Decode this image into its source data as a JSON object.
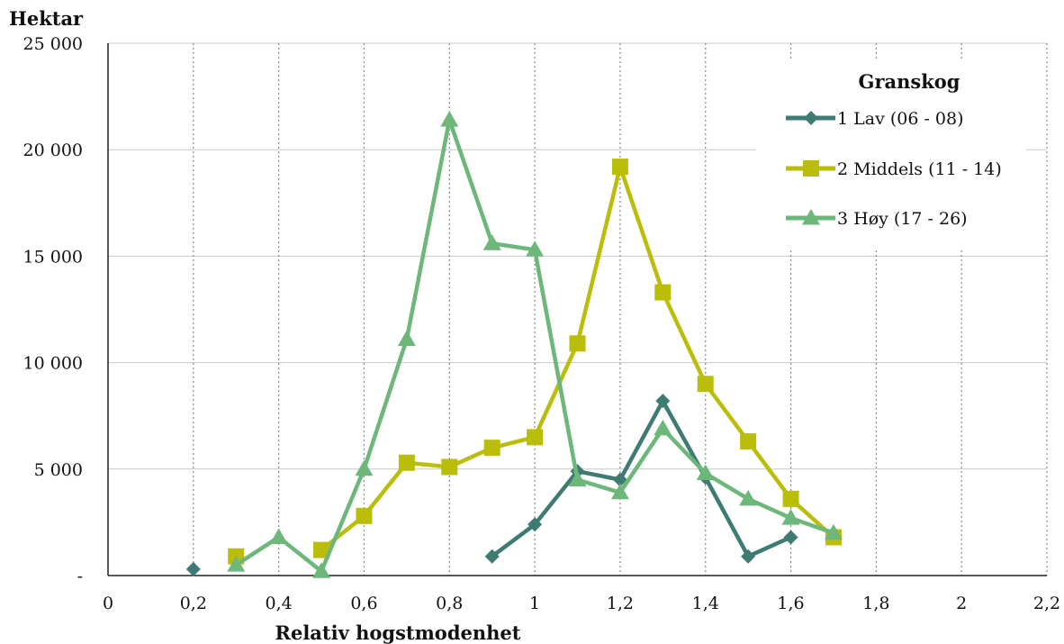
{
  "chart_data": {
    "type": "line",
    "ylabel": "Hektar",
    "xlabel": "Relativ hogstmodenhet",
    "xlim": [
      0,
      2.2
    ],
    "ylim": [
      0,
      25000
    ],
    "x_ticks": [
      0,
      0.2,
      0.4,
      0.6,
      0.8,
      1,
      1.2,
      1.4,
      1.6,
      1.8,
      2,
      2.2
    ],
    "x_tick_labels": [
      "0",
      "0,2",
      "0,4",
      "0,6",
      "0,8",
      "1",
      "1,2",
      "1,4",
      "1,6",
      "1,8",
      "2",
      "2,2"
    ],
    "y_ticks": [
      0,
      5000,
      10000,
      15000,
      20000,
      25000
    ],
    "y_tick_labels": [
      "-",
      "5 000",
      "10 000",
      "15 000",
      "20 000",
      "25 000"
    ],
    "grid": {
      "x": "dotted",
      "y": "solid"
    },
    "legend": {
      "title": "Granskog",
      "position": "top-right"
    },
    "series": [
      {
        "name": "1 Lav (06 - 08)",
        "color": "#3E7B73",
        "marker": "diamond",
        "points": [
          [
            0.2,
            300
          ],
          [
            0.9,
            900
          ],
          [
            1.0,
            2400
          ],
          [
            1.1,
            4900
          ],
          [
            1.2,
            4500
          ],
          [
            1.3,
            8200
          ],
          [
            1.4,
            4600
          ],
          [
            1.5,
            900
          ],
          [
            1.6,
            1800
          ]
        ],
        "breaks_after_index": [
          0
        ]
      },
      {
        "name": "2 Middels (11 - 14)",
        "color": "#BABE0A",
        "marker": "square",
        "points": [
          [
            0.3,
            900
          ],
          [
            0.5,
            1200
          ],
          [
            0.6,
            2800
          ],
          [
            0.7,
            5300
          ],
          [
            0.8,
            5100
          ],
          [
            0.9,
            6000
          ],
          [
            1.0,
            6500
          ],
          [
            1.1,
            10900
          ],
          [
            1.2,
            19200
          ],
          [
            1.3,
            13300
          ],
          [
            1.4,
            9000
          ],
          [
            1.5,
            6300
          ],
          [
            1.6,
            3600
          ],
          [
            1.7,
            1800
          ]
        ],
        "breaks_after_index": [
          0
        ]
      },
      {
        "name": "3 Høy (17 - 26)",
        "color": "#6DB77B",
        "marker": "triangle",
        "points": [
          [
            0.3,
            500
          ],
          [
            0.4,
            1800
          ],
          [
            0.5,
            200
          ],
          [
            0.6,
            5000
          ],
          [
            0.7,
            11100
          ],
          [
            0.8,
            21400
          ],
          [
            0.9,
            15600
          ],
          [
            1.0,
            15300
          ],
          [
            1.1,
            4500
          ],
          [
            1.2,
            3900
          ],
          [
            1.3,
            6900
          ],
          [
            1.4,
            4800
          ],
          [
            1.5,
            3600
          ],
          [
            1.6,
            2700
          ],
          [
            1.7,
            2000
          ]
        ],
        "breaks_after_index": []
      }
    ]
  }
}
